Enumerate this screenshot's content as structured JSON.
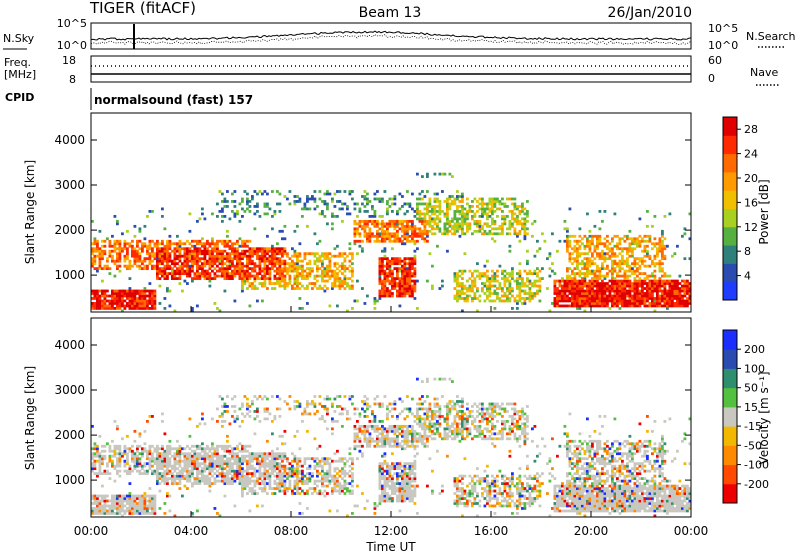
{
  "header": {
    "station": "TIGER (fitACF)",
    "beam": "Beam 13",
    "date": "26/Jan/2010"
  },
  "panels": {
    "nsky": {
      "left_label": "N.Sky",
      "right_label": "N.Search",
      "left_ticks": [
        "10^5",
        "10^0"
      ],
      "right_ticks": [
        "10^5",
        "10^0"
      ]
    },
    "freq": {
      "left_label_1": "Freq.",
      "left_label_2": "[MHz]",
      "left_ticks": [
        "18",
        "8"
      ],
      "right_label": "Nave",
      "right_ticks": [
        "60",
        "0"
      ]
    },
    "cpid": {
      "left_label": "CPID",
      "value": "normalsound (fast) 157"
    }
  },
  "chart_data": [
    {
      "type": "heatmap",
      "title": "",
      "xlabel": "Time UT",
      "ylabel": "Slant Range [km]",
      "x_ticks": [
        "00:00",
        "04:00",
        "08:00",
        "12:00",
        "16:00",
        "20:00",
        "00:00"
      ],
      "y_ticks": [
        "1000",
        "2000",
        "3000",
        "4000"
      ],
      "xlim": [
        "00:00",
        "24:00"
      ],
      "ylim": [
        180,
        4600
      ],
      "colorbar": {
        "label": "Power [dB]",
        "ticks": [
          "4",
          "8",
          "12",
          "16",
          "20",
          "24",
          "28"
        ],
        "range": [
          0,
          30
        ],
        "colors": [
          "#1f3dff",
          "#2a4bb0",
          "#2f7f7a",
          "#55b040",
          "#a8d020",
          "#f0c000",
          "#ff9a00",
          "#ff6a00",
          "#ff2a00",
          "#e00000"
        ]
      }
    },
    {
      "type": "heatmap",
      "title": "",
      "xlabel": "Time UT",
      "ylabel": "Slant Range [km]",
      "x_ticks": [
        "00:00",
        "04:00",
        "08:00",
        "12:00",
        "16:00",
        "20:00",
        "00:00"
      ],
      "y_ticks": [
        "1000",
        "2000",
        "3000",
        "4000"
      ],
      "xlim": [
        "00:00",
        "24:00"
      ],
      "ylim": [
        180,
        4600
      ],
      "colorbar": {
        "label": "Velocity [m s⁻¹]",
        "ticks": [
          "200",
          "100",
          "50",
          "15",
          "-15",
          "-50",
          "-100",
          "-200"
        ],
        "range": [
          -250,
          250
        ],
        "colors": [
          "#1a2eff",
          "#2a4bb0",
          "#2e8f6e",
          "#55c040",
          "#c8c8c0",
          "#f2b800",
          "#ff8a00",
          "#ff4a00",
          "#ee0000"
        ]
      }
    }
  ]
}
